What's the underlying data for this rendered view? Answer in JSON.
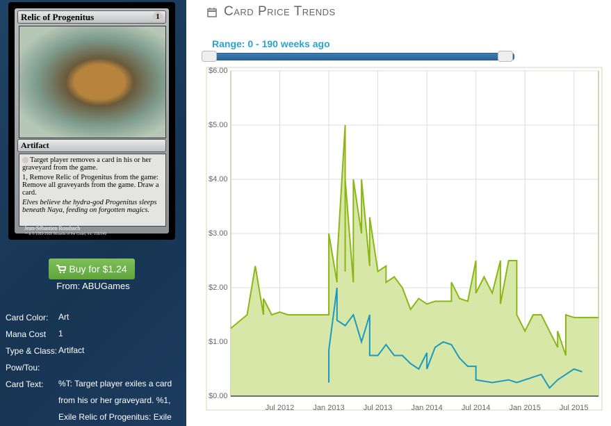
{
  "card": {
    "name": "Relic of Progenitus",
    "cost": "1",
    "type": "Artifact",
    "rules": [
      "Target player removes a card in his or her graveyard from the game.",
      "1, Remove Relic of Progenitus from the game: Remove all graveyards from the game. Draw a card."
    ],
    "flavor": "Elves believe the hydra-god Progenitus sleeps beneath Naya, feeding on forgotten magics.",
    "artist": "Jean-Sébastien Rossbach",
    "copyright": "™ & © 1993-2008 Wizards of the Coast, Inc. 218/249"
  },
  "buy": {
    "button": "Buy for $1.24",
    "source": "From: ABUGames"
  },
  "details": [
    {
      "label": "Card Color:",
      "value": "Art"
    },
    {
      "label": "Mana Cost",
      "value": "1"
    },
    {
      "label": "Type & Class:",
      "value": "Artifact"
    },
    {
      "label": "Pow/Tou:"
    },
    {
      "label": "Card Text:",
      "value": "%T: Target player exiles a card from his or her graveyard. %1, Exile Relic of Progenitus: Exile"
    }
  ],
  "header": {
    "title": "Card Price Trends",
    "range": "Range: 0 - 190 weeks ago"
  },
  "chart_data": {
    "type": "line",
    "series": [
      {
        "color": "#8ab714",
        "fill": "#d6e7a8",
        "x": [
          "2012-01",
          "2012-03",
          "2012-04",
          "2012-05",
          "2012-05",
          "2012-06",
          "2012-07",
          "2012-08",
          "2012-12",
          "2013-01",
          "2013-01",
          "2013-02",
          "2013-02",
          "2013-03",
          "2013-03",
          "2013-03",
          "2013-04",
          "2013-04",
          "2013-05",
          "2013-05",
          "2013-06",
          "2013-06",
          "2013-07",
          "2013-08",
          "2013-08",
          "2013-09",
          "2013-10",
          "2013-11",
          "2013-12",
          "2014-01",
          "2014-02",
          "2014-04",
          "2014-04",
          "2014-05",
          "2014-06",
          "2014-07",
          "2014-07",
          "2014-08",
          "2014-09",
          "2014-10",
          "2014-10",
          "2014-11",
          "2014-12",
          "2014-12",
          "2015-01",
          "2015-02",
          "2015-03",
          "2015-04",
          "2015-05",
          "2015-05",
          "2015-06",
          "2015-06",
          "2015-07",
          "2015-10"
        ],
        "values": [
          1.25,
          1.5,
          2.4,
          1.5,
          1.8,
          1.5,
          1.55,
          1.5,
          1.5,
          1.5,
          3.0,
          2.1,
          2.5,
          5.0,
          2.3,
          4.0,
          2.1,
          4.0,
          3.0,
          4.0,
          2.4,
          3.3,
          2.3,
          2.4,
          2.1,
          2.2,
          2.0,
          1.6,
          1.8,
          1.7,
          1.75,
          1.75,
          2.1,
          1.8,
          1.75,
          2.5,
          1.9,
          2.2,
          1.9,
          2.5,
          1.7,
          2.5,
          2.5,
          1.5,
          1.2,
          1.5,
          1.5,
          1.2,
          0.9,
          1.2,
          0.75,
          1.5,
          1.45,
          1.45
        ]
      },
      {
        "color": "#1a9ac0",
        "x": [
          "2013-01",
          "2013-01",
          "2013-02",
          "2013-02",
          "2013-03",
          "2013-04",
          "2013-05",
          "2013-06",
          "2013-06",
          "2013-07",
          "2013-08",
          "2013-09",
          "2013-10",
          "2013-11",
          "2013-12",
          "2014-01",
          "2014-01",
          "2014-02",
          "2014-03",
          "2014-04",
          "2014-05",
          "2014-06",
          "2014-07",
          "2014-07",
          "2014-09",
          "2014-11",
          "2014-12",
          "2015-01",
          "2015-03",
          "2015-04",
          "2015-05",
          "2015-06",
          "2015-07",
          "2015-08"
        ],
        "values": [
          0.25,
          0.85,
          2.0,
          1.4,
          1.3,
          1.5,
          1.0,
          1.5,
          0.75,
          0.75,
          0.95,
          0.75,
          0.75,
          0.6,
          0.5,
          0.8,
          0.5,
          0.9,
          1.0,
          0.95,
          0.7,
          0.55,
          0.55,
          0.3,
          0.25,
          0.3,
          0.25,
          0.3,
          0.4,
          0.15,
          0.3,
          0.4,
          0.5,
          0.45
        ]
      }
    ],
    "xlim": [
      "2012-01",
      "2015-10"
    ],
    "xticks": [
      {
        "value": "2012-07",
        "label": "Jul 2012"
      },
      {
        "value": "2013-01",
        "label": "Jan 2013"
      },
      {
        "value": "2013-07",
        "label": "Jul 2013"
      },
      {
        "value": "2014-01",
        "label": "Jan 2014"
      },
      {
        "value": "2014-07",
        "label": "Jul 2014"
      },
      {
        "value": "2015-01",
        "label": "Jan 2015"
      },
      {
        "value": "2015-07",
        "label": "Jul 2015"
      }
    ],
    "ylim": [
      0,
      6
    ],
    "yticks": [
      {
        "value": 0,
        "label": "$0.00"
      },
      {
        "value": 1,
        "label": "$1.00"
      },
      {
        "value": 2,
        "label": "$2.00"
      },
      {
        "value": 3,
        "label": "$3.00"
      },
      {
        "value": 4,
        "label": "$4.00"
      },
      {
        "value": 5,
        "label": "$5.00"
      },
      {
        "value": 6,
        "label": "$6.00"
      }
    ],
    "grid": true
  }
}
